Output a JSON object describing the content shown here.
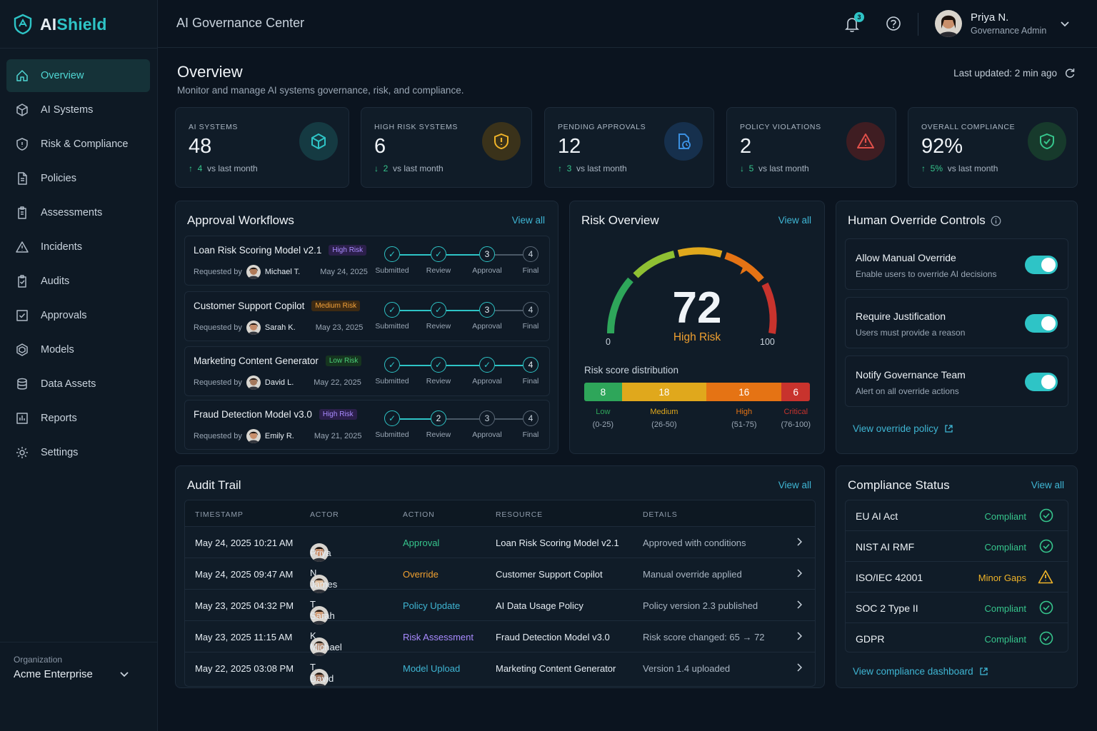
{
  "brand": {
    "name_prefix": "AI",
    "name_suffix": "Shield"
  },
  "topbar": {
    "title": "AI Governance Center",
    "notifications": "3",
    "user_name": "Priya N.",
    "user_role": "Governance Admin"
  },
  "sidebar": {
    "items": [
      {
        "label": "Overview",
        "icon": "home-icon"
      },
      {
        "label": "AI Systems",
        "icon": "cube-icon"
      },
      {
        "label": "Risk & Compliance",
        "icon": "shield-icon"
      },
      {
        "label": "Policies",
        "icon": "document-icon"
      },
      {
        "label": "Assessments",
        "icon": "clipboard-icon"
      },
      {
        "label": "Incidents",
        "icon": "warning-icon"
      },
      {
        "label": "Audits",
        "icon": "clipboard-check-icon"
      },
      {
        "label": "Approvals",
        "icon": "checkbox-icon"
      },
      {
        "label": "Models",
        "icon": "models-icon"
      },
      {
        "label": "Data Assets",
        "icon": "database-icon"
      },
      {
        "label": "Reports",
        "icon": "report-icon"
      },
      {
        "label": "Settings",
        "icon": "gear-icon"
      }
    ],
    "org_label": "Organization",
    "org_value": "Acme Enterprise"
  },
  "header": {
    "title": "Overview",
    "subtitle": "Monitor and manage AI systems governance, risk, and compliance.",
    "last_updated": "Last updated: 2 min ago"
  },
  "stats": [
    {
      "label": "AI SYSTEMS",
      "value": "48",
      "change": "4",
      "trend": "↑",
      "suffix": "vs last month",
      "color": "#2ec4c6"
    },
    {
      "label": "HIGH RISK SYSTEMS",
      "value": "6",
      "change": "2",
      "trend": "↓",
      "suffix": "vs last month",
      "color": "#f0b429"
    },
    {
      "label": "PENDING APPROVALS",
      "value": "12",
      "change": "3",
      "trend": "↑",
      "suffix": "vs last month",
      "color": "#3b8fe0"
    },
    {
      "label": "POLICY VIOLATIONS",
      "value": "2",
      "change": "5",
      "trend": "↓",
      "suffix": "vs last month",
      "color": "#e0504a"
    },
    {
      "label": "OVERALL COMPLIANCE",
      "value": "92%",
      "change": "5%",
      "trend": "↑",
      "suffix": "vs last month",
      "color": "#36c58c"
    }
  ],
  "approvals": {
    "title": "Approval Workflows",
    "view_all": "View all",
    "requested_by": "Requested by",
    "step_labels": [
      "Submitted",
      "Review",
      "Approval",
      "Final"
    ],
    "rows": [
      {
        "name": "Loan Risk Scoring Model v2.1",
        "risk": "High Risk",
        "risk_level": "high",
        "requester": "Michael T.",
        "date": "May 24, 2025",
        "current_step": 3
      },
      {
        "name": "Customer Support Copilot",
        "risk": "Medium Risk",
        "risk_level": "med",
        "requester": "Sarah K.",
        "date": "May 23, 2025",
        "current_step": 3
      },
      {
        "name": "Marketing Content Generator",
        "risk": "Low Risk",
        "risk_level": "low",
        "requester": "David L.",
        "date": "May 22, 2025",
        "current_step": 4
      },
      {
        "name": "Fraud Detection Model v3.0",
        "risk": "High Risk",
        "risk_level": "high",
        "requester": "Emily R.",
        "date": "May 21, 2025",
        "current_step": 2
      }
    ]
  },
  "risk": {
    "title": "Risk Overview",
    "view_all": "View all",
    "score": "72",
    "score_value": 72,
    "score_label": "High Risk",
    "min": "0",
    "max": "100",
    "dist_title": "Risk score distribution",
    "buckets": [
      {
        "count": "8",
        "name": "Low",
        "range": "(0-25)",
        "color": "#2ea65a"
      },
      {
        "count": "18",
        "name": "Medium",
        "range": "(26-50)",
        "color": "#e0a81c"
      },
      {
        "count": "16",
        "name": "High",
        "range": "(51-75)",
        "color": "#e57314"
      },
      {
        "count": "6",
        "name": "Critical",
        "range": "(76-100)",
        "color": "#c8332d"
      }
    ]
  },
  "override": {
    "title": "Human Override Controls",
    "items": [
      {
        "title": "Allow Manual Override",
        "desc": "Enable users to override AI decisions",
        "on": true
      },
      {
        "title": "Require Justification",
        "desc": "Users must provide a reason",
        "on": true
      },
      {
        "title": "Notify Governance Team",
        "desc": "Alert on all override actions",
        "on": true
      }
    ],
    "link": "View override policy"
  },
  "audit": {
    "title": "Audit Trail",
    "view_all": "View all",
    "columns": [
      "TIMESTAMP",
      "ACTOR",
      "ACTION",
      "RESOURCE",
      "DETAILS"
    ],
    "rows": [
      {
        "time": "May 24, 2025 10:21 AM",
        "actor": "Priya N.",
        "action": "Approval",
        "action_color": "#36c58c",
        "resource": "Loan Risk Scoring Model v2.1",
        "details": "Approved with conditions"
      },
      {
        "time": "May 24, 2025 09:47 AM",
        "actor": "James T.",
        "action": "Override",
        "action_color": "#f0a030",
        "resource": "Customer Support Copilot",
        "details": "Manual override applied"
      },
      {
        "time": "May 23, 2025 04:32 PM",
        "actor": "Sarah K.",
        "action": "Policy Update",
        "action_color": "#3fb6d4",
        "resource": "AI Data Usage Policy",
        "details": "Policy version 2.3 published"
      },
      {
        "time": "May 23, 2025 11:15 AM",
        "actor": "Michael T.",
        "action": "Risk Assessment",
        "action_color": "#a98bff",
        "resource": "Fraud Detection Model v3.0",
        "details": "Risk score changed: 65 → 72"
      },
      {
        "time": "May 22, 2025 03:08 PM",
        "actor": "David L.",
        "action": "Model Upload",
        "action_color": "#3fb6d4",
        "resource": "Marketing Content Generator",
        "details": "Version 1.4 uploaded"
      }
    ]
  },
  "compliance": {
    "title": "Compliance Status",
    "view_all": "View all",
    "rows": [
      {
        "name": "EU AI Act",
        "status": "Compliant",
        "state": "ok"
      },
      {
        "name": "NIST AI RMF",
        "status": "Compliant",
        "state": "ok"
      },
      {
        "name": "ISO/IEC 42001",
        "status": "Minor Gaps",
        "state": "warn"
      },
      {
        "name": "SOC 2 Type II",
        "status": "Compliant",
        "state": "ok"
      },
      {
        "name": "GDPR",
        "status": "Compliant",
        "state": "ok"
      }
    ],
    "link": "View compliance dashboard"
  }
}
